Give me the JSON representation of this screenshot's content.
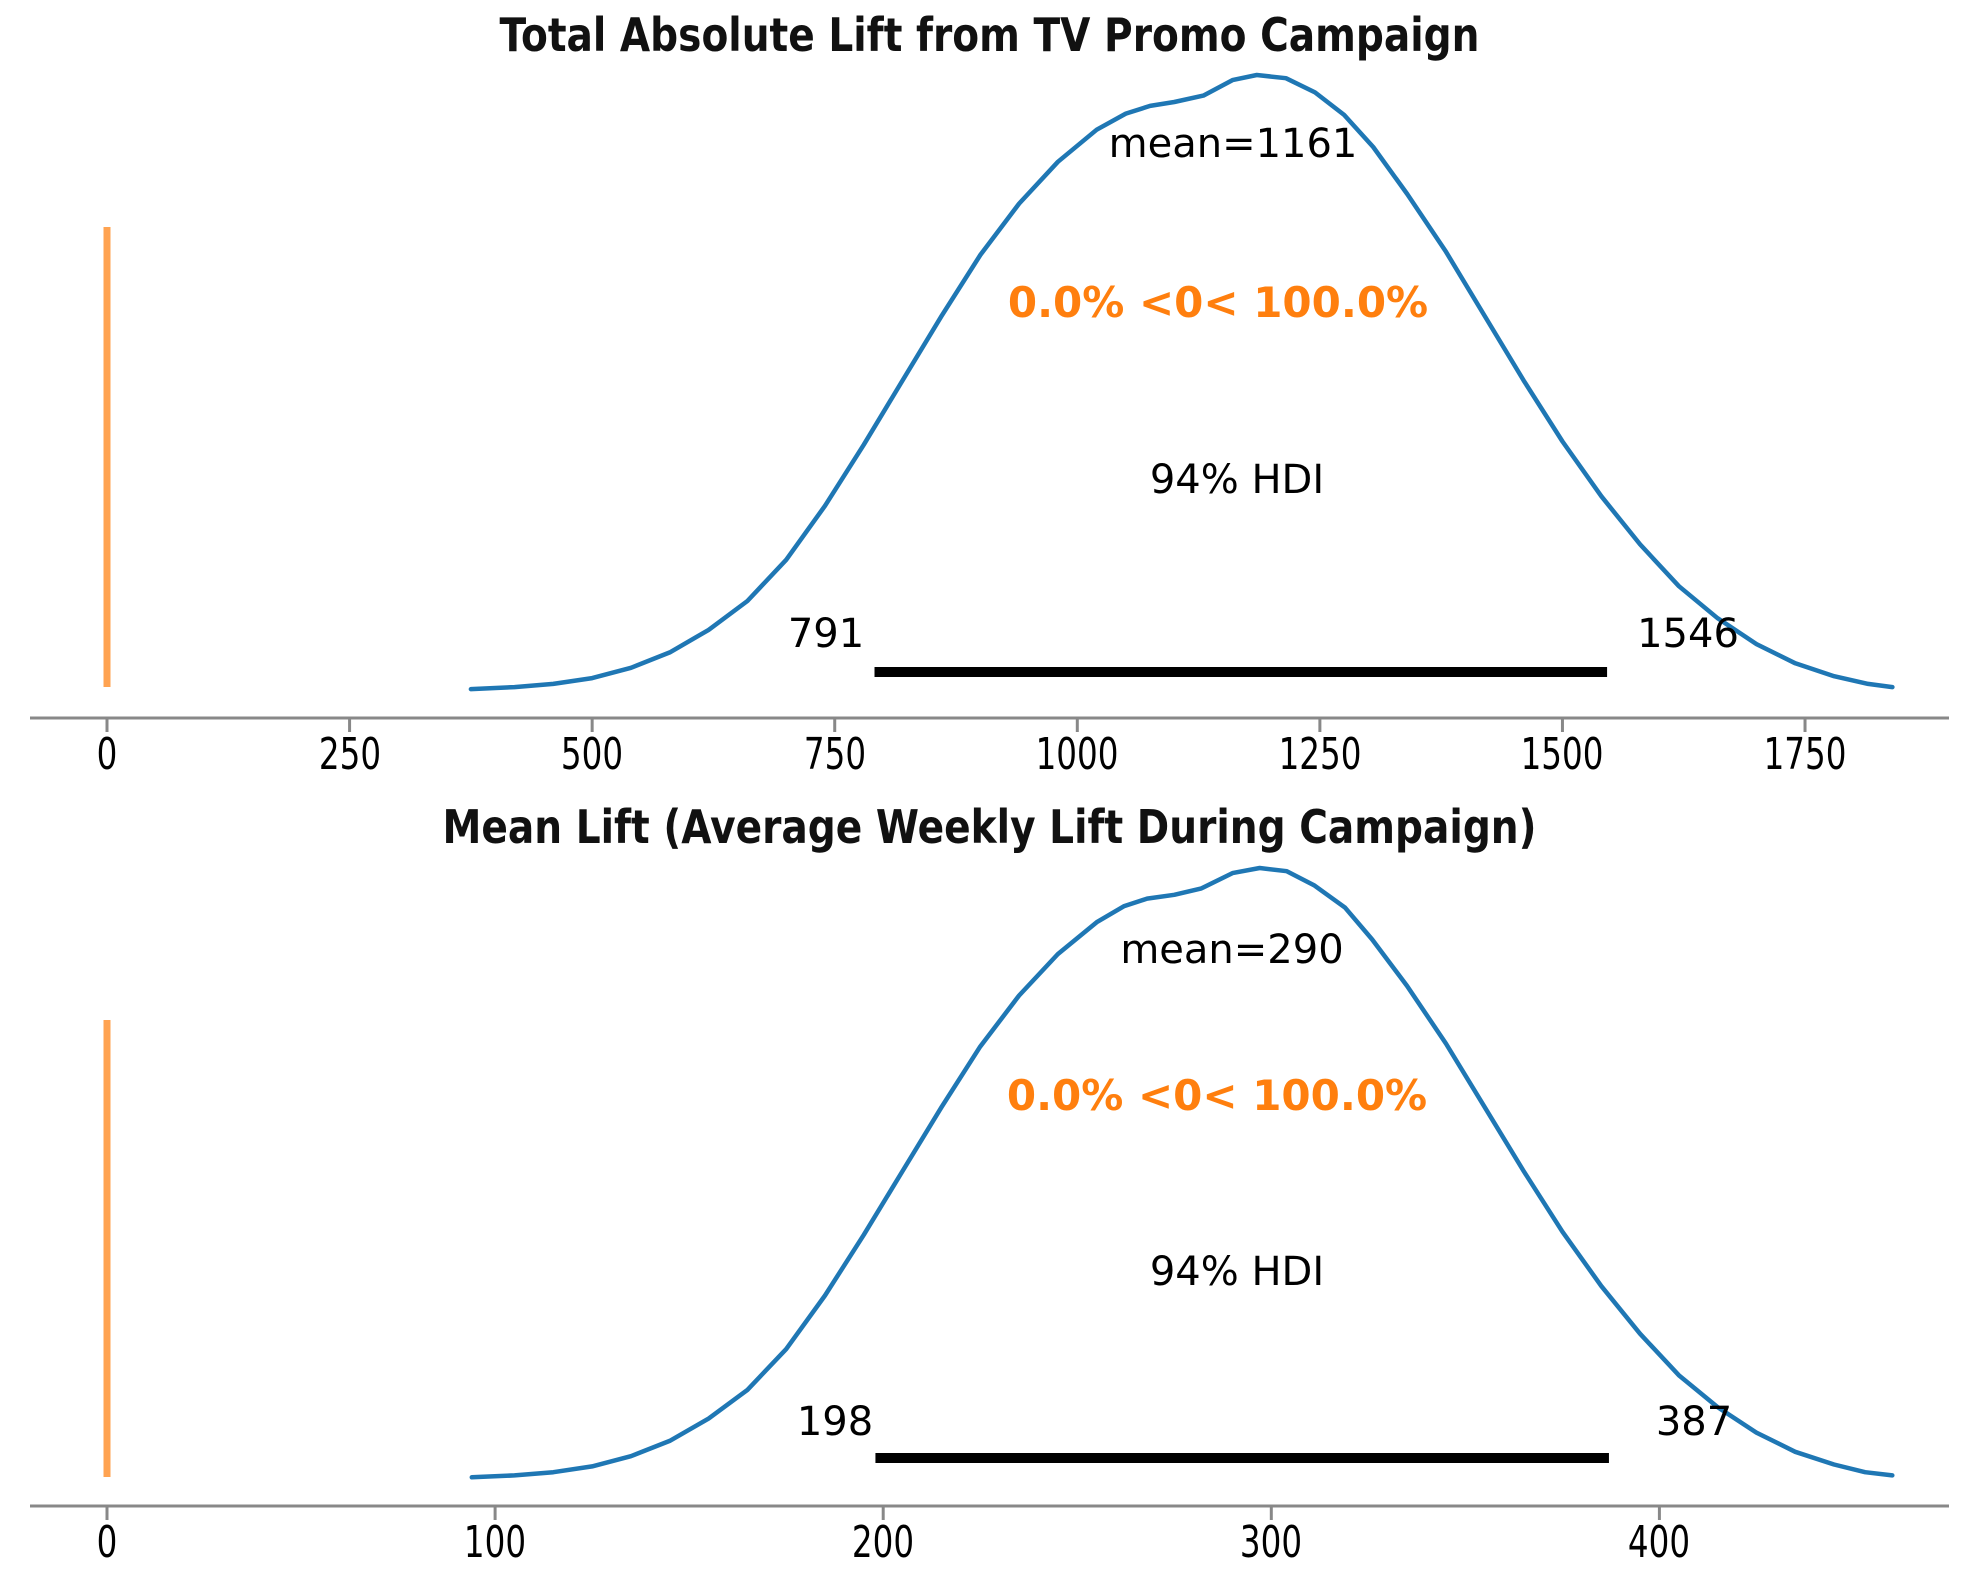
{
  "figure": {
    "background": "#ffffff",
    "colors": {
      "curve": "#1f77b4",
      "ref_line": "#ff7f0e",
      "ref_text": "#ff7f0e",
      "hdi_line": "#000000",
      "axis": "#888888",
      "text": "#000000"
    }
  },
  "chart_data": [
    {
      "type": "kde",
      "title": "Total Absolute Lift from TV Promo Campaign",
      "xlabel": "",
      "legend": "none",
      "grid": false,
      "x_ticks": [
        0,
        250,
        500,
        750,
        1000,
        1250,
        1500,
        1750
      ],
      "x_range": [
        -80,
        1930
      ],
      "mean": 1161,
      "mean_label": "mean=1161",
      "ref_val": 0,
      "ref_val_label": "0.0% <0< 100.0%",
      "hdi": {
        "low": 791,
        "high": 1546,
        "mass": "94%",
        "label": "94% HDI"
      },
      "curve": [
        [
          375,
          0.045
        ],
        [
          420,
          0.048
        ],
        [
          460,
          0.053
        ],
        [
          500,
          0.062
        ],
        [
          540,
          0.078
        ],
        [
          580,
          0.102
        ],
        [
          620,
          0.137
        ],
        [
          660,
          0.182
        ],
        [
          700,
          0.246
        ],
        [
          740,
          0.33
        ],
        [
          780,
          0.425
        ],
        [
          820,
          0.525
        ],
        [
          860,
          0.625
        ],
        [
          900,
          0.72
        ],
        [
          940,
          0.8
        ],
        [
          980,
          0.865
        ],
        [
          1020,
          0.915
        ],
        [
          1050,
          0.94
        ],
        [
          1075,
          0.952
        ],
        [
          1100,
          0.958
        ],
        [
          1130,
          0.968
        ],
        [
          1160,
          0.992
        ],
        [
          1185,
          1.0
        ],
        [
          1215,
          0.995
        ],
        [
          1245,
          0.973
        ],
        [
          1275,
          0.938
        ],
        [
          1305,
          0.888
        ],
        [
          1340,
          0.815
        ],
        [
          1380,
          0.725
        ],
        [
          1420,
          0.625
        ],
        [
          1460,
          0.525
        ],
        [
          1500,
          0.43
        ],
        [
          1540,
          0.345
        ],
        [
          1580,
          0.27
        ],
        [
          1620,
          0.205
        ],
        [
          1660,
          0.155
        ],
        [
          1700,
          0.115
        ],
        [
          1740,
          0.085
        ],
        [
          1780,
          0.065
        ],
        [
          1815,
          0.053
        ],
        [
          1840,
          0.048
        ]
      ]
    },
    {
      "type": "kde",
      "title": "Mean Lift (Average Weekly Lift During Campaign)",
      "xlabel": "",
      "legend": "none",
      "grid": false,
      "x_ticks": [
        0,
        100,
        200,
        300,
        400
      ],
      "x_range": [
        -25,
        480
      ],
      "mean": 290,
      "mean_label": "mean=290",
      "ref_val": 0,
      "ref_val_label": "0.0% <0< 100.0%",
      "hdi": {
        "low": 198,
        "high": 387,
        "mass": "94%",
        "label": "94% HDI"
      },
      "curve": [
        [
          94,
          0.045
        ],
        [
          105,
          0.048
        ],
        [
          115,
          0.053
        ],
        [
          125,
          0.062
        ],
        [
          135,
          0.078
        ],
        [
          145,
          0.102
        ],
        [
          155,
          0.137
        ],
        [
          165,
          0.182
        ],
        [
          175,
          0.246
        ],
        [
          185,
          0.33
        ],
        [
          195,
          0.425
        ],
        [
          205,
          0.525
        ],
        [
          215,
          0.625
        ],
        [
          225,
          0.72
        ],
        [
          235,
          0.8
        ],
        [
          245,
          0.865
        ],
        [
          255,
          0.915
        ],
        [
          262,
          0.94
        ],
        [
          268,
          0.952
        ],
        [
          275,
          0.958
        ],
        [
          282,
          0.968
        ],
        [
          290,
          0.992
        ],
        [
          297,
          1.0
        ],
        [
          304,
          0.995
        ],
        [
          311,
          0.973
        ],
        [
          319,
          0.938
        ],
        [
          326,
          0.888
        ],
        [
          335,
          0.815
        ],
        [
          345,
          0.725
        ],
        [
          355,
          0.625
        ],
        [
          365,
          0.525
        ],
        [
          375,
          0.43
        ],
        [
          385,
          0.345
        ],
        [
          395,
          0.27
        ],
        [
          405,
          0.205
        ],
        [
          415,
          0.155
        ],
        [
          425,
          0.115
        ],
        [
          435,
          0.085
        ],
        [
          445,
          0.065
        ],
        [
          453,
          0.053
        ],
        [
          460,
          0.048
        ]
      ]
    }
  ]
}
